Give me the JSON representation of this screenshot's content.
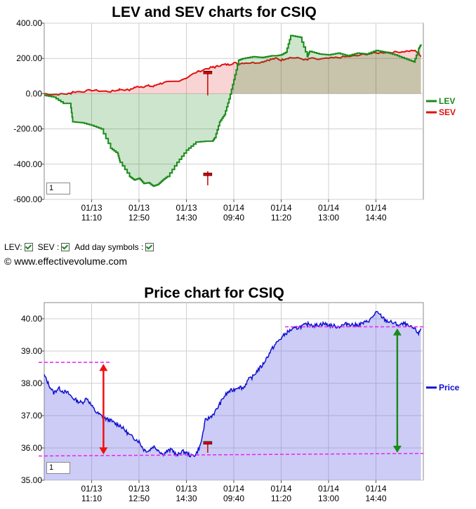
{
  "top_chart": {
    "zoom_value": "1",
    "legend": [
      {
        "label": "LEV",
        "color": "#1a8a1a"
      },
      {
        "label": "SEV",
        "color": "#e01010"
      }
    ]
  },
  "controls": {
    "lev_label": "LEV:",
    "sev_label": "SEV :",
    "day_symbols_label": "Add day symbols :"
  },
  "copyright": "© www.effectivevolume.com",
  "bottom_chart": {
    "zoom_value": "1",
    "legend": [
      {
        "label": "Price",
        "color": "#1010d0"
      }
    ]
  },
  "chart_data": [
    {
      "type": "line",
      "title": "LEV and SEV charts for CSIQ",
      "xlabel": "",
      "ylabel": "",
      "ylim": [
        -600,
        400
      ],
      "y_ticks": [
        "400.00",
        "200.00",
        "0.00",
        "-200.00",
        "-400.00",
        "-600.00"
      ],
      "x_ticks": [
        {
          "date": "01/13",
          "time": "11:10"
        },
        {
          "date": "01/13",
          "time": "12:50"
        },
        {
          "date": "01/13",
          "time": "14:30"
        },
        {
          "date": "01/14",
          "time": "09:40"
        },
        {
          "date": "01/14",
          "time": "11:20"
        },
        {
          "date": "01/14",
          "time": "13:00"
        },
        {
          "date": "01/14",
          "time": "14:40"
        }
      ],
      "grid": true,
      "legend_position": "right",
      "x": [
        0,
        2,
        4,
        5.5,
        6,
        8,
        10,
        12,
        14,
        15.5,
        16,
        18,
        19,
        20,
        21,
        22,
        23,
        24,
        25,
        26,
        28,
        30,
        32,
        34,
        35.5,
        36,
        37,
        38,
        39,
        40,
        41,
        42,
        44,
        46,
        47,
        48,
        49,
        50,
        51,
        52,
        54,
        55.5,
        56,
        58,
        60,
        62,
        64,
        66,
        68,
        70,
        72,
        74,
        76,
        78,
        79,
        79.5
      ],
      "series": [
        {
          "name": "LEV",
          "values": [
            -10,
            -20,
            -55,
            -55,
            -160,
            -165,
            -180,
            -200,
            -310,
            -340,
            -390,
            -470,
            -490,
            -480,
            -510,
            -505,
            -525,
            -515,
            -490,
            -470,
            -390,
            -320,
            -275,
            -270,
            -270,
            -250,
            -160,
            -120,
            -30,
            80,
            190,
            200,
            210,
            205,
            210,
            215,
            215,
            220,
            235,
            330,
            320,
            210,
            240,
            225,
            220,
            230,
            215,
            230,
            225,
            245,
            235,
            220,
            200,
            180,
            255,
            280
          ]
        },
        {
          "name": "SEV",
          "values": [
            0,
            -5,
            -2,
            0,
            10,
            12,
            20,
            15,
            12,
            20,
            25,
            20,
            35,
            40,
            40,
            45,
            40,
            55,
            60,
            65,
            70,
            90,
            120,
            140,
            150,
            150,
            160,
            165,
            165,
            175,
            170,
            175,
            175,
            180,
            190,
            195,
            200,
            190,
            200,
            205,
            200,
            190,
            200,
            195,
            200,
            205,
            210,
            215,
            225,
            230,
            235,
            235,
            240,
            245,
            230,
            210
          ]
        }
      ],
      "annotations": [
        "SEV day marker near 01/14 09:40",
        "LEV day marker near 01/14 09:40"
      ]
    },
    {
      "type": "area",
      "title": "Price chart for CSIQ",
      "xlabel": "",
      "ylabel": "",
      "ylim": [
        35,
        40.5
      ],
      "y_ticks": [
        "40.00",
        "39.00",
        "38.00",
        "37.00",
        "36.00",
        "35.00"
      ],
      "x_ticks": [
        {
          "date": "01/13",
          "time": "11:10"
        },
        {
          "date": "01/13",
          "time": "12:50"
        },
        {
          "date": "01/13",
          "time": "14:30"
        },
        {
          "date": "01/14",
          "time": "09:40"
        },
        {
          "date": "01/14",
          "time": "11:20"
        },
        {
          "date": "01/14",
          "time": "13:00"
        },
        {
          "date": "01/14",
          "time": "14:40"
        }
      ],
      "grid": true,
      "legend_position": "right",
      "x": [
        0,
        1,
        2,
        3,
        4,
        5,
        6,
        7,
        8,
        9,
        10,
        11,
        12,
        13,
        14,
        15,
        16,
        17,
        18,
        19,
        20,
        21,
        22,
        23,
        24,
        25,
        26,
        27,
        28,
        29,
        30,
        31,
        32,
        33,
        34,
        35,
        36,
        37,
        38,
        39,
        40,
        41,
        42,
        43,
        44,
        45,
        46,
        47,
        48,
        49,
        50,
        51,
        52,
        53,
        54,
        55,
        56,
        57,
        58,
        59,
        60,
        61,
        62,
        63,
        64,
        65,
        66,
        67,
        68,
        69,
        70,
        71,
        72,
        73,
        74,
        75,
        76,
        77,
        78,
        79,
        79.5
      ],
      "series": [
        {
          "name": "Price",
          "values": [
            38.25,
            37.95,
            37.7,
            37.85,
            37.75,
            37.7,
            37.55,
            37.45,
            37.4,
            37.55,
            37.3,
            37.1,
            37.0,
            36.9,
            36.85,
            36.75,
            36.7,
            36.55,
            36.4,
            36.3,
            36.2,
            35.95,
            35.9,
            36.05,
            35.95,
            35.8,
            35.9,
            35.95,
            35.75,
            35.9,
            35.85,
            35.75,
            35.8,
            36.1,
            36.85,
            36.95,
            37.1,
            37.35,
            37.6,
            37.75,
            37.8,
            37.9,
            37.85,
            38.1,
            38.2,
            38.4,
            38.55,
            38.8,
            39.05,
            39.25,
            39.4,
            39.55,
            39.65,
            39.7,
            39.75,
            39.8,
            39.85,
            39.78,
            39.82,
            39.85,
            39.8,
            39.78,
            39.75,
            39.8,
            39.85,
            39.82,
            39.8,
            39.85,
            39.9,
            40.0,
            40.2,
            40.1,
            39.95,
            39.9,
            39.85,
            39.8,
            39.85,
            39.75,
            39.7,
            39.55,
            39.7
          ]
        }
      ],
      "reference_lines": [
        {
          "label": "resistance",
          "x": [
            0,
            14
          ],
          "y": [
            38.65,
            38.65
          ]
        },
        {
          "label": "support",
          "x": [
            0,
            80
          ],
          "y": [
            35.75,
            35.83
          ]
        },
        {
          "label": "resistance",
          "x": [
            52,
            80
          ],
          "y": [
            39.75,
            39.75
          ]
        }
      ],
      "arrows": [
        {
          "x": 12.5,
          "y": [
            35.8,
            38.6
          ],
          "color": "#ee1111"
        },
        {
          "x": 74.5,
          "y": [
            35.85,
            39.7
          ],
          "color": "#1a8a1a"
        }
      ],
      "annotations": [
        "day marker near 01/14 09:40"
      ]
    }
  ]
}
